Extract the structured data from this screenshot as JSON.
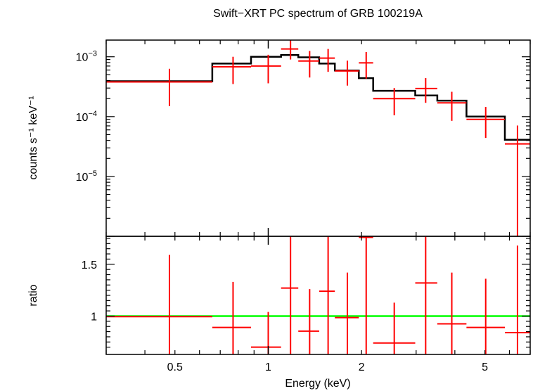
{
  "title": "Swift−XRT PC spectrum of GRB 100219A",
  "colors": {
    "data": "#ff0000",
    "model": "#000000",
    "unity": "#00ff00",
    "axes": "#000000"
  },
  "chart_data": [
    {
      "type": "line",
      "panel": "spectrum",
      "xscale": "log",
      "yscale": "log",
      "xlim": [
        0.3,
        7.0
      ],
      "ylim": [
        1e-06,
        0.0019
      ],
      "ylabel": "counts s⁻¹ keV⁻¹",
      "ytick_labels": [
        {
          "value": 0.001,
          "base": "10",
          "exp": "−3"
        },
        {
          "value": 0.0001,
          "base": "10",
          "exp": "−4"
        },
        {
          "value": 1e-05,
          "base": "10",
          "exp": "−5"
        }
      ],
      "data_points": [
        {
          "xlo": 0.3,
          "xhi": 0.66,
          "x": 0.48,
          "y": 0.00038,
          "ylo": 0.00015,
          "yhi": 0.00063
        },
        {
          "xlo": 0.66,
          "xhi": 0.88,
          "x": 0.77,
          "y": 0.00068,
          "ylo": 0.00035,
          "yhi": 0.001
        },
        {
          "xlo": 0.88,
          "xhi": 1.1,
          "x": 1.0,
          "y": 0.0007,
          "ylo": 0.00036,
          "yhi": 0.00108
        },
        {
          "xlo": 1.1,
          "xhi": 1.25,
          "x": 1.18,
          "y": 0.00135,
          "ylo": 0.0009,
          "yhi": 0.0019
        },
        {
          "xlo": 1.25,
          "xhi": 1.46,
          "x": 1.36,
          "y": 0.00085,
          "ylo": 0.00045,
          "yhi": 0.00125
        },
        {
          "xlo": 1.46,
          "xhi": 1.64,
          "x": 1.56,
          "y": 0.00095,
          "ylo": 0.00056,
          "yhi": 0.00135
        },
        {
          "xlo": 1.64,
          "xhi": 1.96,
          "x": 1.8,
          "y": 0.00058,
          "ylo": 0.00033,
          "yhi": 0.00086
        },
        {
          "xlo": 1.96,
          "xhi": 2.18,
          "x": 2.07,
          "y": 0.00079,
          "ylo": 0.00043,
          "yhi": 0.0012
        },
        {
          "xlo": 2.18,
          "xhi": 2.98,
          "x": 2.55,
          "y": 0.0002,
          "ylo": 0.000105,
          "yhi": 0.0003
        },
        {
          "xlo": 2.98,
          "xhi": 3.51,
          "x": 3.22,
          "y": 0.000295,
          "ylo": 0.00017,
          "yhi": 0.00044
        },
        {
          "xlo": 3.51,
          "xhi": 4.36,
          "x": 3.91,
          "y": 0.00017,
          "ylo": 8.5e-05,
          "yhi": 0.00026
        },
        {
          "xlo": 4.36,
          "xhi": 5.8,
          "x": 5.03,
          "y": 9e-05,
          "ylo": 4.4e-05,
          "yhi": 0.000145
        },
        {
          "xlo": 5.8,
          "xhi": 7.0,
          "x": 6.37,
          "y": 3.5e-05,
          "ylo": 1e-06,
          "yhi": 7.1e-05
        }
      ],
      "model_steps": [
        {
          "xlo": 0.3,
          "xhi": 0.66,
          "y": 0.00039
        },
        {
          "xlo": 0.66,
          "xhi": 0.88,
          "y": 0.00077
        },
        {
          "xlo": 0.88,
          "xhi": 1.1,
          "y": 0.001
        },
        {
          "xlo": 1.1,
          "xhi": 1.25,
          "y": 0.00107
        },
        {
          "xlo": 1.25,
          "xhi": 1.46,
          "y": 0.00098
        },
        {
          "xlo": 1.46,
          "xhi": 1.64,
          "y": 0.00077
        },
        {
          "xlo": 1.64,
          "xhi": 1.96,
          "y": 0.00059
        },
        {
          "xlo": 1.96,
          "xhi": 2.18,
          "y": 0.00044
        },
        {
          "xlo": 2.18,
          "xhi": 2.98,
          "y": 0.00027
        },
        {
          "xlo": 2.98,
          "xhi": 3.51,
          "y": 0.000225
        },
        {
          "xlo": 3.51,
          "xhi": 4.36,
          "y": 0.000185
        },
        {
          "xlo": 4.36,
          "xhi": 5.8,
          "y": 0.0001
        },
        {
          "xlo": 5.8,
          "xhi": 7.0,
          "y": 4.1e-05
        }
      ]
    },
    {
      "type": "line",
      "panel": "ratio",
      "xscale": "log",
      "yscale": "linear",
      "xlim": [
        0.3,
        7.0
      ],
      "ylim": [
        0.63,
        1.77
      ],
      "xlabel": "Energy (keV)",
      "ylabel": "ratio",
      "xtick_labels": [
        {
          "value": 0.5,
          "label": "0.5"
        },
        {
          "value": 1,
          "label": "1"
        },
        {
          "value": 2,
          "label": "2"
        },
        {
          "value": 5,
          "label": "5"
        }
      ],
      "ytick_labels": [
        {
          "value": 1.5,
          "label": "1.5"
        },
        {
          "value": 1,
          "label": "1"
        }
      ],
      "unity_line": 1.0,
      "data_points": [
        {
          "xlo": 0.3,
          "xhi": 0.66,
          "x": 0.48,
          "y": 0.995,
          "ylo": 0.63,
          "yhi": 1.59
        },
        {
          "xlo": 0.66,
          "xhi": 0.88,
          "x": 0.77,
          "y": 0.89,
          "ylo": 0.63,
          "yhi": 1.33
        },
        {
          "xlo": 0.88,
          "xhi": 1.1,
          "x": 1.0,
          "y": 0.7,
          "ylo": 0.63,
          "yhi": 1.04
        },
        {
          "xlo": 1.1,
          "xhi": 1.25,
          "x": 1.18,
          "y": 1.27,
          "ylo": 0.63,
          "yhi": 1.77
        },
        {
          "xlo": 1.25,
          "xhi": 1.46,
          "x": 1.36,
          "y": 0.855,
          "ylo": 0.63,
          "yhi": 1.26
        },
        {
          "xlo": 1.46,
          "xhi": 1.64,
          "x": 1.56,
          "y": 1.24,
          "ylo": 0.63,
          "yhi": 1.77
        },
        {
          "xlo": 1.64,
          "xhi": 1.96,
          "x": 1.8,
          "y": 0.985,
          "ylo": 0.63,
          "yhi": 1.42
        },
        {
          "xlo": 1.96,
          "xhi": 2.18,
          "x": 2.07,
          "y": 1.76,
          "ylo": 0.63,
          "yhi": 1.77
        },
        {
          "xlo": 2.18,
          "xhi": 2.98,
          "x": 2.55,
          "y": 0.74,
          "ylo": 0.63,
          "yhi": 1.13
        },
        {
          "xlo": 2.98,
          "xhi": 3.51,
          "x": 3.22,
          "y": 1.32,
          "ylo": 0.63,
          "yhi": 1.77
        },
        {
          "xlo": 3.51,
          "xhi": 4.36,
          "x": 3.91,
          "y": 0.925,
          "ylo": 0.63,
          "yhi": 1.42
        },
        {
          "xlo": 4.36,
          "xhi": 5.8,
          "x": 5.03,
          "y": 0.89,
          "ylo": 0.63,
          "yhi": 1.36
        },
        {
          "xlo": 5.8,
          "xhi": 7.0,
          "x": 6.37,
          "y": 0.84,
          "ylo": 0.63,
          "yhi": 1.68
        }
      ]
    }
  ]
}
